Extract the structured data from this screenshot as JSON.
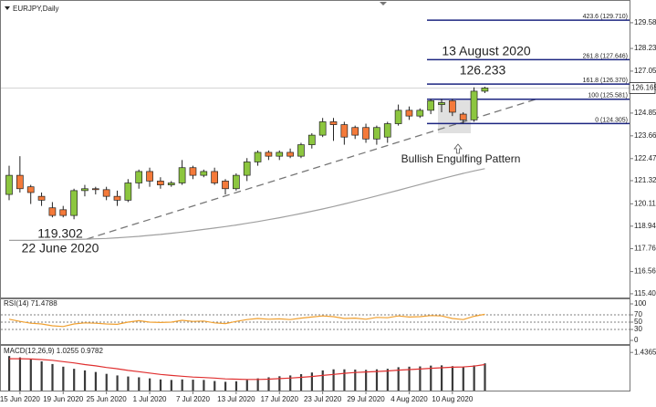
{
  "chart_data": [
    {
      "type": "candlestick",
      "title": "EURJPY,Daily",
      "categories": [
        null,
        "15 Jun 2020",
        null,
        null,
        null,
        "19 Jun 2020",
        null,
        null,
        null,
        "25 Jun 2020",
        null,
        null,
        null,
        "1 Jul 2020",
        null,
        null,
        null,
        "7 Jul 2020",
        null,
        null,
        null,
        "13 Jul 2020",
        null,
        null,
        null,
        "17 Jul 2020",
        null,
        null,
        null,
        "23 Jul 2020",
        null,
        null,
        null,
        "29 Jul 2020",
        null,
        null,
        null,
        "4 Aug 2020",
        null,
        null,
        null,
        "10 Aug 2020",
        null,
        null,
        null
      ],
      "open": [
        120.6,
        121.6,
        121.0,
        120.5,
        119.9,
        119.8,
        119.5,
        120.8,
        120.9,
        120.85,
        120.5,
        120.3,
        121.2,
        121.8,
        121.3,
        121.1,
        121.2,
        122.0,
        121.6,
        121.8,
        121.3,
        120.9,
        121.6,
        122.3,
        122.8,
        122.6,
        122.8,
        122.6,
        123.2,
        123.7,
        124.4,
        124.25,
        124.1,
        124.1,
        123.5,
        123.6,
        124.3,
        125.0,
        124.7,
        125.0,
        125.3,
        125.5,
        124.8,
        124.5,
        126.0
      ],
      "high": [
        122.1,
        122.6,
        121.1,
        120.7,
        120.2,
        120.0,
        120.9,
        121.1,
        121.0,
        121.0,
        120.8,
        121.4,
        121.9,
        122.0,
        121.5,
        121.3,
        122.4,
        122.1,
        121.9,
        122.0,
        121.4,
        121.7,
        122.5,
        122.9,
        122.9,
        122.9,
        123.0,
        123.3,
        123.8,
        124.6,
        124.6,
        124.4,
        124.2,
        124.3,
        124.2,
        124.4,
        125.3,
        125.2,
        125.1,
        125.6,
        125.6,
        125.6,
        124.9,
        126.2,
        126.233
      ],
      "low": [
        120.3,
        120.7,
        120.1,
        120.0,
        119.4,
        119.4,
        119.302,
        120.5,
        120.6,
        120.3,
        120.0,
        120.2,
        120.9,
        121.0,
        120.9,
        121.0,
        121.1,
        121.4,
        121.5,
        121.1,
        120.6,
        120.8,
        121.3,
        122.1,
        122.4,
        122.4,
        122.5,
        122.5,
        123.0,
        123.6,
        123.4,
        123.2,
        123.5,
        123.3,
        123.2,
        123.3,
        124.2,
        124.5,
        124.6,
        124.8,
        124.9,
        124.7,
        124.305,
        124.4,
        125.9
      ],
      "close": [
        121.6,
        120.9,
        120.7,
        120.3,
        119.5,
        119.5,
        120.8,
        120.9,
        120.85,
        120.5,
        120.3,
        121.2,
        121.8,
        121.3,
        121.1,
        121.2,
        122.0,
        121.6,
        121.8,
        121.2,
        120.9,
        121.6,
        122.3,
        122.8,
        122.6,
        122.8,
        122.6,
        123.2,
        123.7,
        124.4,
        124.25,
        123.6,
        123.7,
        123.5,
        124.1,
        124.3,
        125.0,
        124.7,
        125.0,
        125.5,
        125.4,
        124.9,
        124.5,
        126.0,
        126.165
      ],
      "up_color": "#8cc63f",
      "down_color": "#f47a3a",
      "moving_average": {
        "color": "#a0a0a0",
        "values": [
          118.2,
          118.2,
          118.2,
          118.21,
          118.22,
          118.23,
          118.24,
          118.26,
          118.28,
          118.3,
          118.33,
          118.37,
          118.41,
          118.46,
          118.51,
          118.57,
          118.63,
          118.7,
          118.77,
          118.84,
          118.92,
          119.0,
          119.09,
          119.18,
          119.28,
          119.38,
          119.49,
          119.6,
          119.72,
          119.84,
          119.97,
          120.1,
          120.24,
          120.38,
          120.52,
          120.67,
          120.82,
          120.97,
          121.12,
          121.27,
          121.42,
          121.56,
          121.7,
          121.83,
          121.95
        ]
      },
      "ylim": [
        115.21,
        130.53
      ],
      "yticks": [
        {
          "value": 129.58,
          "label": "129.580"
        },
        128.235,
        {
          "value": 127.05,
          "label": "127.050"
        },
        124.855,
        123.665,
        122.475,
        {
          "value": 121.32,
          "label": "121.320"
        },
        {
          "value": 120.11,
          "label": "120.110"
        },
        {
          "value": 118.94,
          "label": "118.940"
        },
        117.765,
        116.565,
        115.405
      ],
      "last_price": 126.165,
      "fib_levels": [
        {
          "value": 129.71,
          "label": "423.6 (129.710)"
        },
        {
          "value": 127.646,
          "label": "261.8 (127.646)"
        },
        {
          "value": 126.37,
          "label": "161.8 (126.370)"
        },
        {
          "value": 125.581,
          "label": "100 (125.581)"
        },
        {
          "value": 124.305,
          "label": "0 (124.305)"
        }
      ],
      "fib_color": "#1c2580",
      "annotations": [
        "13 August 2020",
        "22 June 2020",
        "Bullish Engulfing Pattern"
      ]
    },
    {
      "type": "line",
      "title": "RSI(14) 71.4788",
      "color": "#f0a030",
      "values": [
        58,
        52,
        47,
        45,
        40,
        38,
        45,
        48,
        47,
        45,
        44,
        50,
        54,
        50,
        49,
        50,
        55,
        52,
        53,
        48,
        46,
        52,
        57,
        60,
        58,
        59,
        57,
        61,
        64,
        67,
        65,
        60,
        61,
        58,
        63,
        62,
        67,
        64,
        65,
        68,
        67,
        60,
        57,
        66,
        71.4788
      ],
      "ylim": [
        0,
        100
      ],
      "yticks": [
        100,
        70,
        50,
        30,
        0
      ]
    },
    {
      "type": "macd",
      "title": "MACD(12,26,9) 1.0255 0.9782",
      "histogram": {
        "color": "#3a3a3a",
        "values": [
          1.3,
          1.25,
          1.18,
          1.1,
          1.0,
          0.9,
          0.82,
          0.76,
          0.7,
          0.63,
          0.57,
          0.53,
          0.5,
          0.46,
          0.42,
          0.4,
          0.42,
          0.41,
          0.4,
          0.36,
          0.33,
          0.35,
          0.4,
          0.46,
          0.5,
          0.54,
          0.57,
          0.62,
          0.68,
          0.76,
          0.8,
          0.8,
          0.79,
          0.78,
          0.8,
          0.82,
          0.88,
          0.9,
          0.91,
          0.94,
          0.95,
          0.92,
          0.88,
          0.95,
          1.0255
        ]
      },
      "signal": {
        "color": "#e03030",
        "values": [
          1.2,
          1.2,
          1.19,
          1.17,
          1.14,
          1.09,
          1.04,
          0.98,
          0.93,
          0.87,
          0.82,
          0.76,
          0.71,
          0.66,
          0.61,
          0.57,
          0.54,
          0.51,
          0.49,
          0.47,
          0.44,
          0.43,
          0.42,
          0.42,
          0.43,
          0.45,
          0.47,
          0.5,
          0.53,
          0.57,
          0.61,
          0.65,
          0.68,
          0.7,
          0.72,
          0.74,
          0.77,
          0.79,
          0.81,
          0.84,
          0.86,
          0.88,
          0.89,
          0.92,
          0.9782
        ]
      },
      "ylim": [
        0,
        1.65
      ],
      "yticks": [
        1.4365
      ]
    }
  ]
}
